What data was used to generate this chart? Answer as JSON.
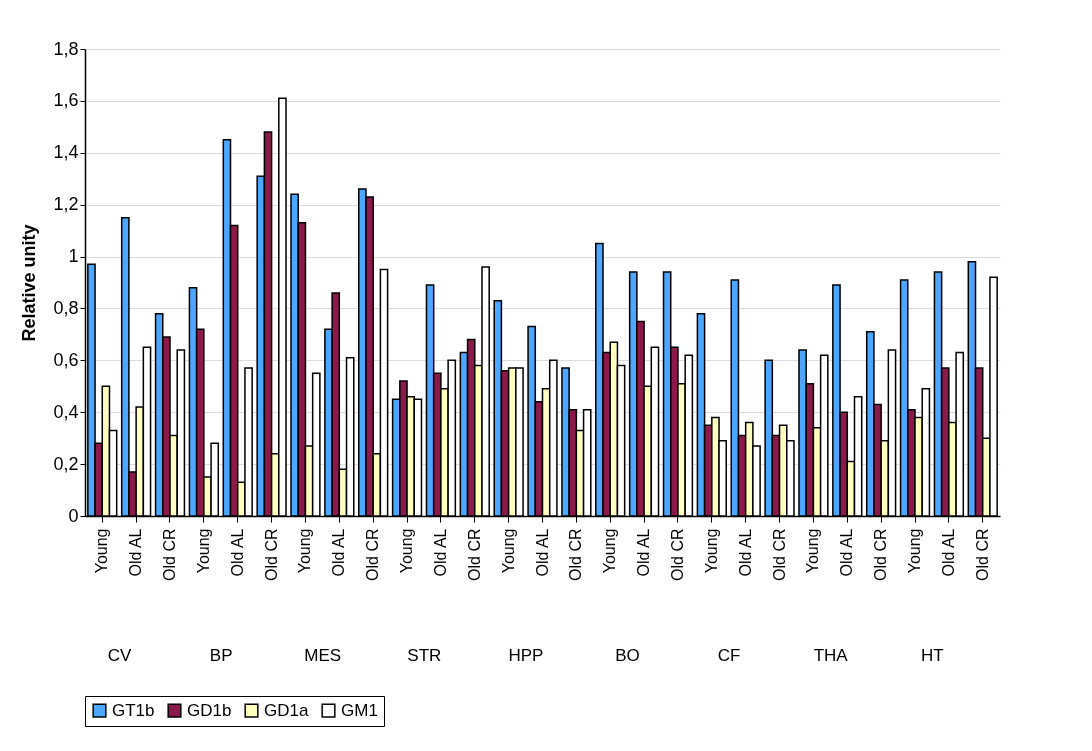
{
  "chart_data": {
    "type": "bar",
    "ylabel": "Relative unity",
    "categories": [
      "Young",
      "Old AL",
      "Old CR",
      "Young",
      "Old AL",
      "Old CR",
      "Young",
      "Old AL",
      "Old CR",
      "Young",
      "Old AL",
      "Old CR",
      "Young",
      "Old AL",
      "Old CR",
      "Young",
      "Old AL",
      "Old CR",
      "Young",
      "Old AL",
      "Old CR",
      "Young",
      "Old AL",
      "Old CR",
      "Young",
      "Old AL",
      "Old CR"
    ],
    "annotations": [
      "CV",
      "BP",
      "MES",
      "STR",
      "HPP",
      "BO",
      "CF",
      "THA",
      "HT"
    ],
    "series": [
      {
        "name": "GT1b",
        "color": "#4da6ff",
        "values": [
          0.97,
          1.15,
          0.78,
          0.88,
          1.45,
          1.31,
          1.24,
          0.72,
          1.26,
          0.45,
          0.89,
          0.63,
          0.83,
          0.73,
          0.57,
          1.05,
          0.94,
          0.94,
          0.78,
          0.91,
          0.6,
          0.64,
          0.89,
          0.71,
          0.91,
          0.94,
          0.98
        ]
      },
      {
        "name": "GD1b",
        "color": "#8b1a4a",
        "values": [
          0.28,
          0.17,
          0.69,
          0.72,
          1.12,
          1.48,
          1.13,
          0.86,
          1.23,
          0.52,
          0.55,
          0.68,
          0.56,
          0.44,
          0.41,
          0.63,
          0.75,
          0.65,
          0.35,
          0.31,
          0.31,
          0.51,
          0.4,
          0.43,
          0.41,
          0.57,
          0.57
        ]
      },
      {
        "name": "GD1a",
        "color": "#ffffc0",
        "values": [
          0.5,
          0.42,
          0.31,
          0.15,
          0.13,
          0.24,
          0.27,
          0.18,
          0.24,
          0.46,
          0.49,
          0.58,
          0.57,
          0.49,
          0.33,
          0.67,
          0.5,
          0.51,
          0.38,
          0.36,
          0.35,
          0.34,
          0.21,
          0.29,
          0.38,
          0.36,
          0.3
        ]
      },
      {
        "name": "GM1",
        "color": "#ffffff",
        "values": [
          0.33,
          0.65,
          0.64,
          0.28,
          0.57,
          1.61,
          0.55,
          0.61,
          0.95,
          0.45,
          0.6,
          0.96,
          0.57,
          0.6,
          0.41,
          0.58,
          0.65,
          0.62,
          0.29,
          0.27,
          0.29,
          0.62,
          0.46,
          0.64,
          0.49,
          0.63,
          0.92
        ]
      }
    ],
    "ylim": [
      0,
      1.8
    ],
    "yticks": [
      0,
      {
        "value": 0.2,
        "label": "0,2"
      },
      {
        "value": 0.4,
        "label": "0,4"
      },
      {
        "value": 0.6,
        "label": "0,6"
      },
      {
        "value": 0.8,
        "label": "0,8"
      },
      1,
      {
        "value": 1.2,
        "label": "1,2"
      },
      {
        "value": 1.4,
        "label": "1,4"
      },
      {
        "value": 1.6,
        "label": "1,6"
      },
      {
        "value": 1.8,
        "label": "1,8"
      }
    ],
    "grid": "y",
    "legend": "bottom"
  }
}
